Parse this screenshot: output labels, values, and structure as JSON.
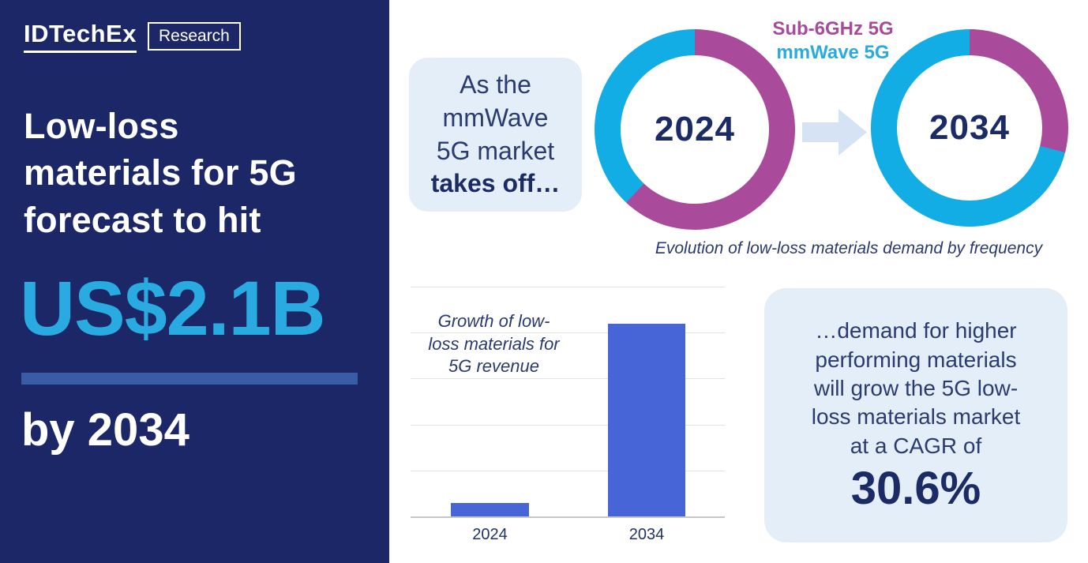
{
  "brand": {
    "logo": "IDTechEx",
    "badge": "Research"
  },
  "left_panel": {
    "headline_lines": [
      "Low-loss",
      "materials for 5G",
      "forecast to hit"
    ],
    "forecast_value": "US$2.1B",
    "forecast_timeframe": "by 2034"
  },
  "intro_callout": {
    "lines": [
      "As the",
      "mmWave",
      "5G market"
    ],
    "emphasis": "takes off…"
  },
  "donut_caption": "Evolution of low-loss materials demand by frequency",
  "outro_callout": {
    "lines": [
      "…demand for higher",
      "performing materials",
      "will grow the 5G low-",
      "loss materials market",
      "at a CAGR of"
    ],
    "stat": "30.6%"
  },
  "colors": {
    "panel_navy": "#1B2766",
    "accent_cyan": "#29ABE2",
    "donut_cyan": "#12ADE5",
    "donut_magenta": "#A94A9B",
    "bar_blue": "#4765D6",
    "callout_bg": "#E4EEF8",
    "arrow_fill": "#D5E3F5",
    "divider_blue": "#3A5CA6",
    "text_navy": "#1B2B66"
  },
  "chart_data": [
    {
      "type": "pie",
      "subtype": "donut",
      "title": "2024",
      "labels": [
        "Sub-6GHz 5G",
        "mmWave 5G"
      ],
      "values": [
        62,
        38
      ],
      "unit": "% share (estimated from arc angles)",
      "colors": [
        "#A94A9B",
        "#12ADE5"
      ],
      "legend_position": "top-center"
    },
    {
      "type": "pie",
      "subtype": "donut",
      "title": "2034",
      "labels": [
        "Sub-6GHz 5G",
        "mmWave 5G"
      ],
      "values": [
        29,
        71
      ],
      "unit": "% share (estimated from arc angles)",
      "colors": [
        "#A94A9B",
        "#12ADE5"
      ],
      "legend_position": "top-center"
    },
    {
      "type": "bar",
      "title": "Growth of low-loss materials for 5G revenue",
      "title_lines": [
        "Growth of low-",
        "loss materials for",
        "5G revenue"
      ],
      "categories": [
        "2024",
        "2034"
      ],
      "values": [
        0.15,
        2.1
      ],
      "unit": "US$B",
      "ylim": [
        0,
        2.5
      ],
      "y_axis_labeled": false,
      "gridlines": true,
      "bar_color": "#4765D6"
    }
  ]
}
